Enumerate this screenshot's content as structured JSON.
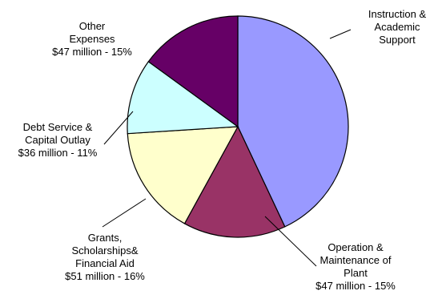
{
  "chart_data": {
    "type": "pie",
    "title": "",
    "slices": [
      {
        "label_lines": [
          "Instruction &",
          "Academic",
          "Support"
        ],
        "value": 43,
        "color": "#9999FF"
      },
      {
        "label_lines": [
          "Operation &",
          "Maintenance of",
          "Plant",
          "$47 million - 15%"
        ],
        "amount": "$47 million",
        "value": 15,
        "color": "#993366"
      },
      {
        "label_lines": [
          "Grants,",
          "Scholarships&",
          "Financial Aid",
          "$51 million - 16%"
        ],
        "amount": "$51 million",
        "value": 16,
        "color": "#FFFFCC"
      },
      {
        "label_lines": [
          "Debt Service &",
          "Capital Outlay",
          "$36 million - 11%"
        ],
        "amount": "$36 million",
        "value": 11,
        "color": "#CCFFFF"
      },
      {
        "label_lines": [
          "Other",
          "Expenses",
          "$47 million - 15%"
        ],
        "amount": "$47 million",
        "value": 15,
        "color": "#660066"
      }
    ],
    "start_angle_deg": 0,
    "direction": "clockwise",
    "legend": "none",
    "labels": "outside-with-leader-lines"
  }
}
